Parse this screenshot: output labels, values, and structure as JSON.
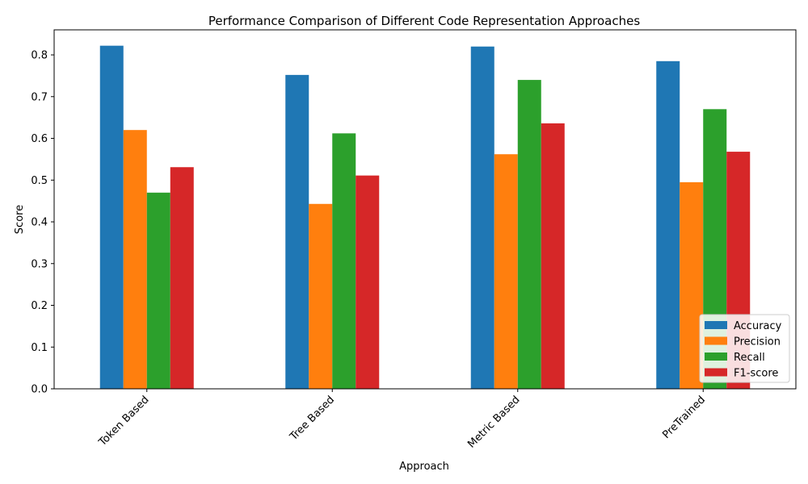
{
  "chart_data": {
    "type": "bar",
    "title": "Performance Comparison of Different Code Representation Approaches",
    "xlabel": "Approach",
    "ylabel": "Score",
    "categories": [
      "Token Based",
      "Tree Based",
      "Metric Based",
      "PreTrained"
    ],
    "series": [
      {
        "name": "Accuracy",
        "color": "#1f77b4",
        "values": [
          0.822,
          0.752,
          0.82,
          0.785
        ]
      },
      {
        "name": "Precision",
        "color": "#ff7f0e",
        "values": [
          0.62,
          0.443,
          0.562,
          0.495
        ]
      },
      {
        "name": "Recall",
        "color": "#2ca02c",
        "values": [
          0.47,
          0.612,
          0.74,
          0.67
        ]
      },
      {
        "name": "F1-score",
        "color": "#d62728",
        "values": [
          0.531,
          0.511,
          0.636,
          0.568
        ]
      }
    ],
    "ylim": [
      0,
      0.86
    ],
    "yticks": [
      "0.0",
      "0.1",
      "0.2",
      "0.3",
      "0.4",
      "0.5",
      "0.6",
      "0.7",
      "0.8"
    ],
    "grid": false,
    "legend": "bottom-right"
  }
}
